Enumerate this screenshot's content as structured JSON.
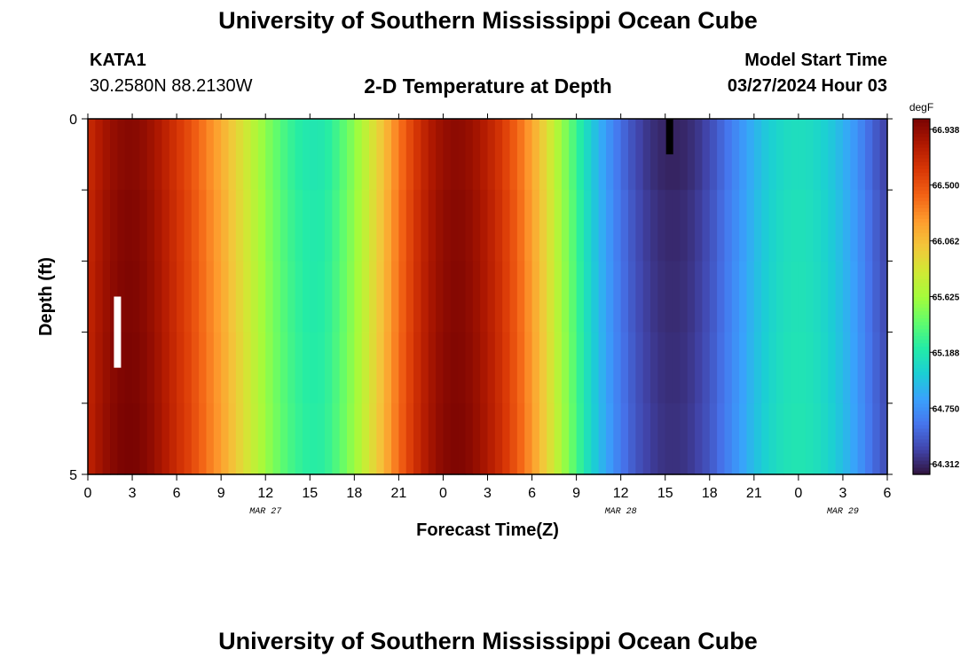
{
  "header": {
    "title_top": "University of Southern Mississippi Ocean Cube",
    "station": "KATA1",
    "coords": "30.2580N  88.2130W",
    "plot_title": "2-D Temperature at Depth",
    "model_start_label": "Model Start Time",
    "model_start_value": "03/27/2024 Hour 03",
    "title_bottom": "University of Southern Mississippi Ocean Cube"
  },
  "chart_data": {
    "type": "heatmap",
    "title": "2-D Temperature at Depth",
    "xlabel": "Forecast Time(Z)",
    "ylabel": "Depth (ft)",
    "x_range_hours": [
      0,
      54
    ],
    "y_range_ft": [
      0,
      5
    ],
    "x_tick_labels": [
      "0",
      "3",
      "6",
      "9",
      "12",
      "15",
      "18",
      "21",
      "0",
      "3",
      "6",
      "9",
      "12",
      "15",
      "18",
      "21",
      "0",
      "3",
      "6"
    ],
    "y_tick_labels": [
      "0",
      "5"
    ],
    "date_labels": [
      {
        "text": "MAR 27",
        "at_hour": 12
      },
      {
        "text": "MAR 28",
        "at_hour": 36
      },
      {
        "text": "MAR 29",
        "at_hour": 51
      }
    ],
    "depth_levels_ft": [
      0,
      1,
      2,
      3,
      4,
      5
    ],
    "colorbar": {
      "unit": "degF",
      "min": 64.23,
      "max": 67.02,
      "tick_labels": [
        "64.312",
        "64.750",
        "65.188",
        "65.625",
        "66.062",
        "66.500",
        "66.938"
      ],
      "colors": [
        "#30123b",
        "#4145ab",
        "#4675ed",
        "#39a2fc",
        "#1bcfd4",
        "#24eca6",
        "#61fc6c",
        "#a4fc3b",
        "#d1e834",
        "#f3c63a",
        "#fe9b2d",
        "#f36315",
        "#d93806",
        "#b11901",
        "#7a0402"
      ]
    },
    "time_series_hours": [
      0,
      1,
      2,
      3,
      4,
      5,
      6,
      7,
      8,
      9,
      10,
      11,
      12,
      13,
      14,
      15,
      16,
      17,
      18,
      19,
      20,
      21,
      22,
      23,
      24,
      25,
      26,
      27,
      28,
      29,
      30,
      31,
      32,
      33,
      34,
      35,
      36,
      37,
      38,
      39,
      40,
      41,
      42,
      43,
      44,
      45,
      46,
      47,
      48,
      49,
      50,
      51,
      52,
      53,
      54
    ],
    "temperature_degF": [
      66.7,
      66.85,
      66.95,
      66.98,
      66.92,
      66.8,
      66.65,
      66.5,
      66.32,
      66.15,
      65.95,
      65.75,
      65.55,
      65.38,
      65.25,
      65.18,
      65.2,
      65.35,
      65.55,
      65.8,
      66.05,
      66.35,
      66.6,
      66.8,
      66.92,
      66.96,
      66.9,
      66.78,
      66.62,
      66.42,
      66.18,
      65.9,
      65.6,
      65.3,
      65.02,
      64.8,
      64.6,
      64.45,
      64.35,
      64.3,
      64.3,
      64.35,
      64.45,
      64.6,
      64.75,
      64.9,
      65.02,
      65.1,
      65.13,
      65.1,
      65.02,
      64.9,
      64.75,
      64.55,
      64.4
    ],
    "depth_offsets_degF": [
      0,
      0.02,
      0.03,
      0.04,
      0.05,
      0.06
    ],
    "markers": [
      {
        "type": "white-bar",
        "hour": 2,
        "depth_from_ft": 2.5,
        "depth_to_ft": 3.5
      },
      {
        "type": "black-bar",
        "hour": 39.3,
        "depth_from_ft": 0,
        "depth_to_ft": 0.5
      }
    ]
  }
}
